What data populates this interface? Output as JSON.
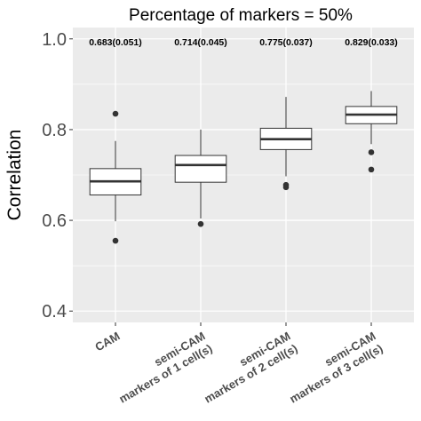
{
  "chart_data": {
    "type": "box",
    "title": "Percentage of markers = 50%",
    "xlabel": "",
    "ylabel": "Correlation",
    "ylim": [
      0.375,
      1.025
    ],
    "yticks": [
      0.4,
      0.6,
      0.8,
      1.0
    ],
    "ytick_labels": [
      "0.4",
      "0.6",
      "0.8",
      "1.0"
    ],
    "grid": true,
    "colors": {
      "panel": "#ebebeb",
      "grid_major": "#ffffff",
      "box_fill": "#ffffff",
      "box_line": "#333333",
      "tick_text": "#4d4d4d"
    },
    "categories": [
      [
        "CAM"
      ],
      [
        "semi-CAM",
        "markers of 1 cell(s)"
      ],
      [
        "semi-CAM",
        "markers of 2 cell(s)"
      ],
      [
        "semi-CAM",
        "markers of 3 cell(s)"
      ]
    ],
    "boxes": [
      {
        "q1": 0.656,
        "median": 0.686,
        "q3": 0.714,
        "whisker_low": 0.598,
        "whisker_high": 0.775,
        "outliers": [
          0.835,
          0.555
        ],
        "label": "0.683(0.051)"
      },
      {
        "q1": 0.684,
        "median": 0.722,
        "q3": 0.743,
        "whisker_low": 0.604,
        "whisker_high": 0.8,
        "outliers": [
          0.592
        ],
        "label": "0.714(0.045)"
      },
      {
        "q1": 0.756,
        "median": 0.779,
        "q3": 0.803,
        "whisker_low": 0.697,
        "whisker_high": 0.872,
        "outliers": [
          0.678,
          0.673
        ],
        "label": "0.775(0.037)"
      },
      {
        "q1": 0.813,
        "median": 0.833,
        "q3": 0.851,
        "whisker_low": 0.768,
        "whisker_high": 0.885,
        "outliers": [
          0.75,
          0.712
        ],
        "label": "0.829(0.033)"
      }
    ]
  }
}
